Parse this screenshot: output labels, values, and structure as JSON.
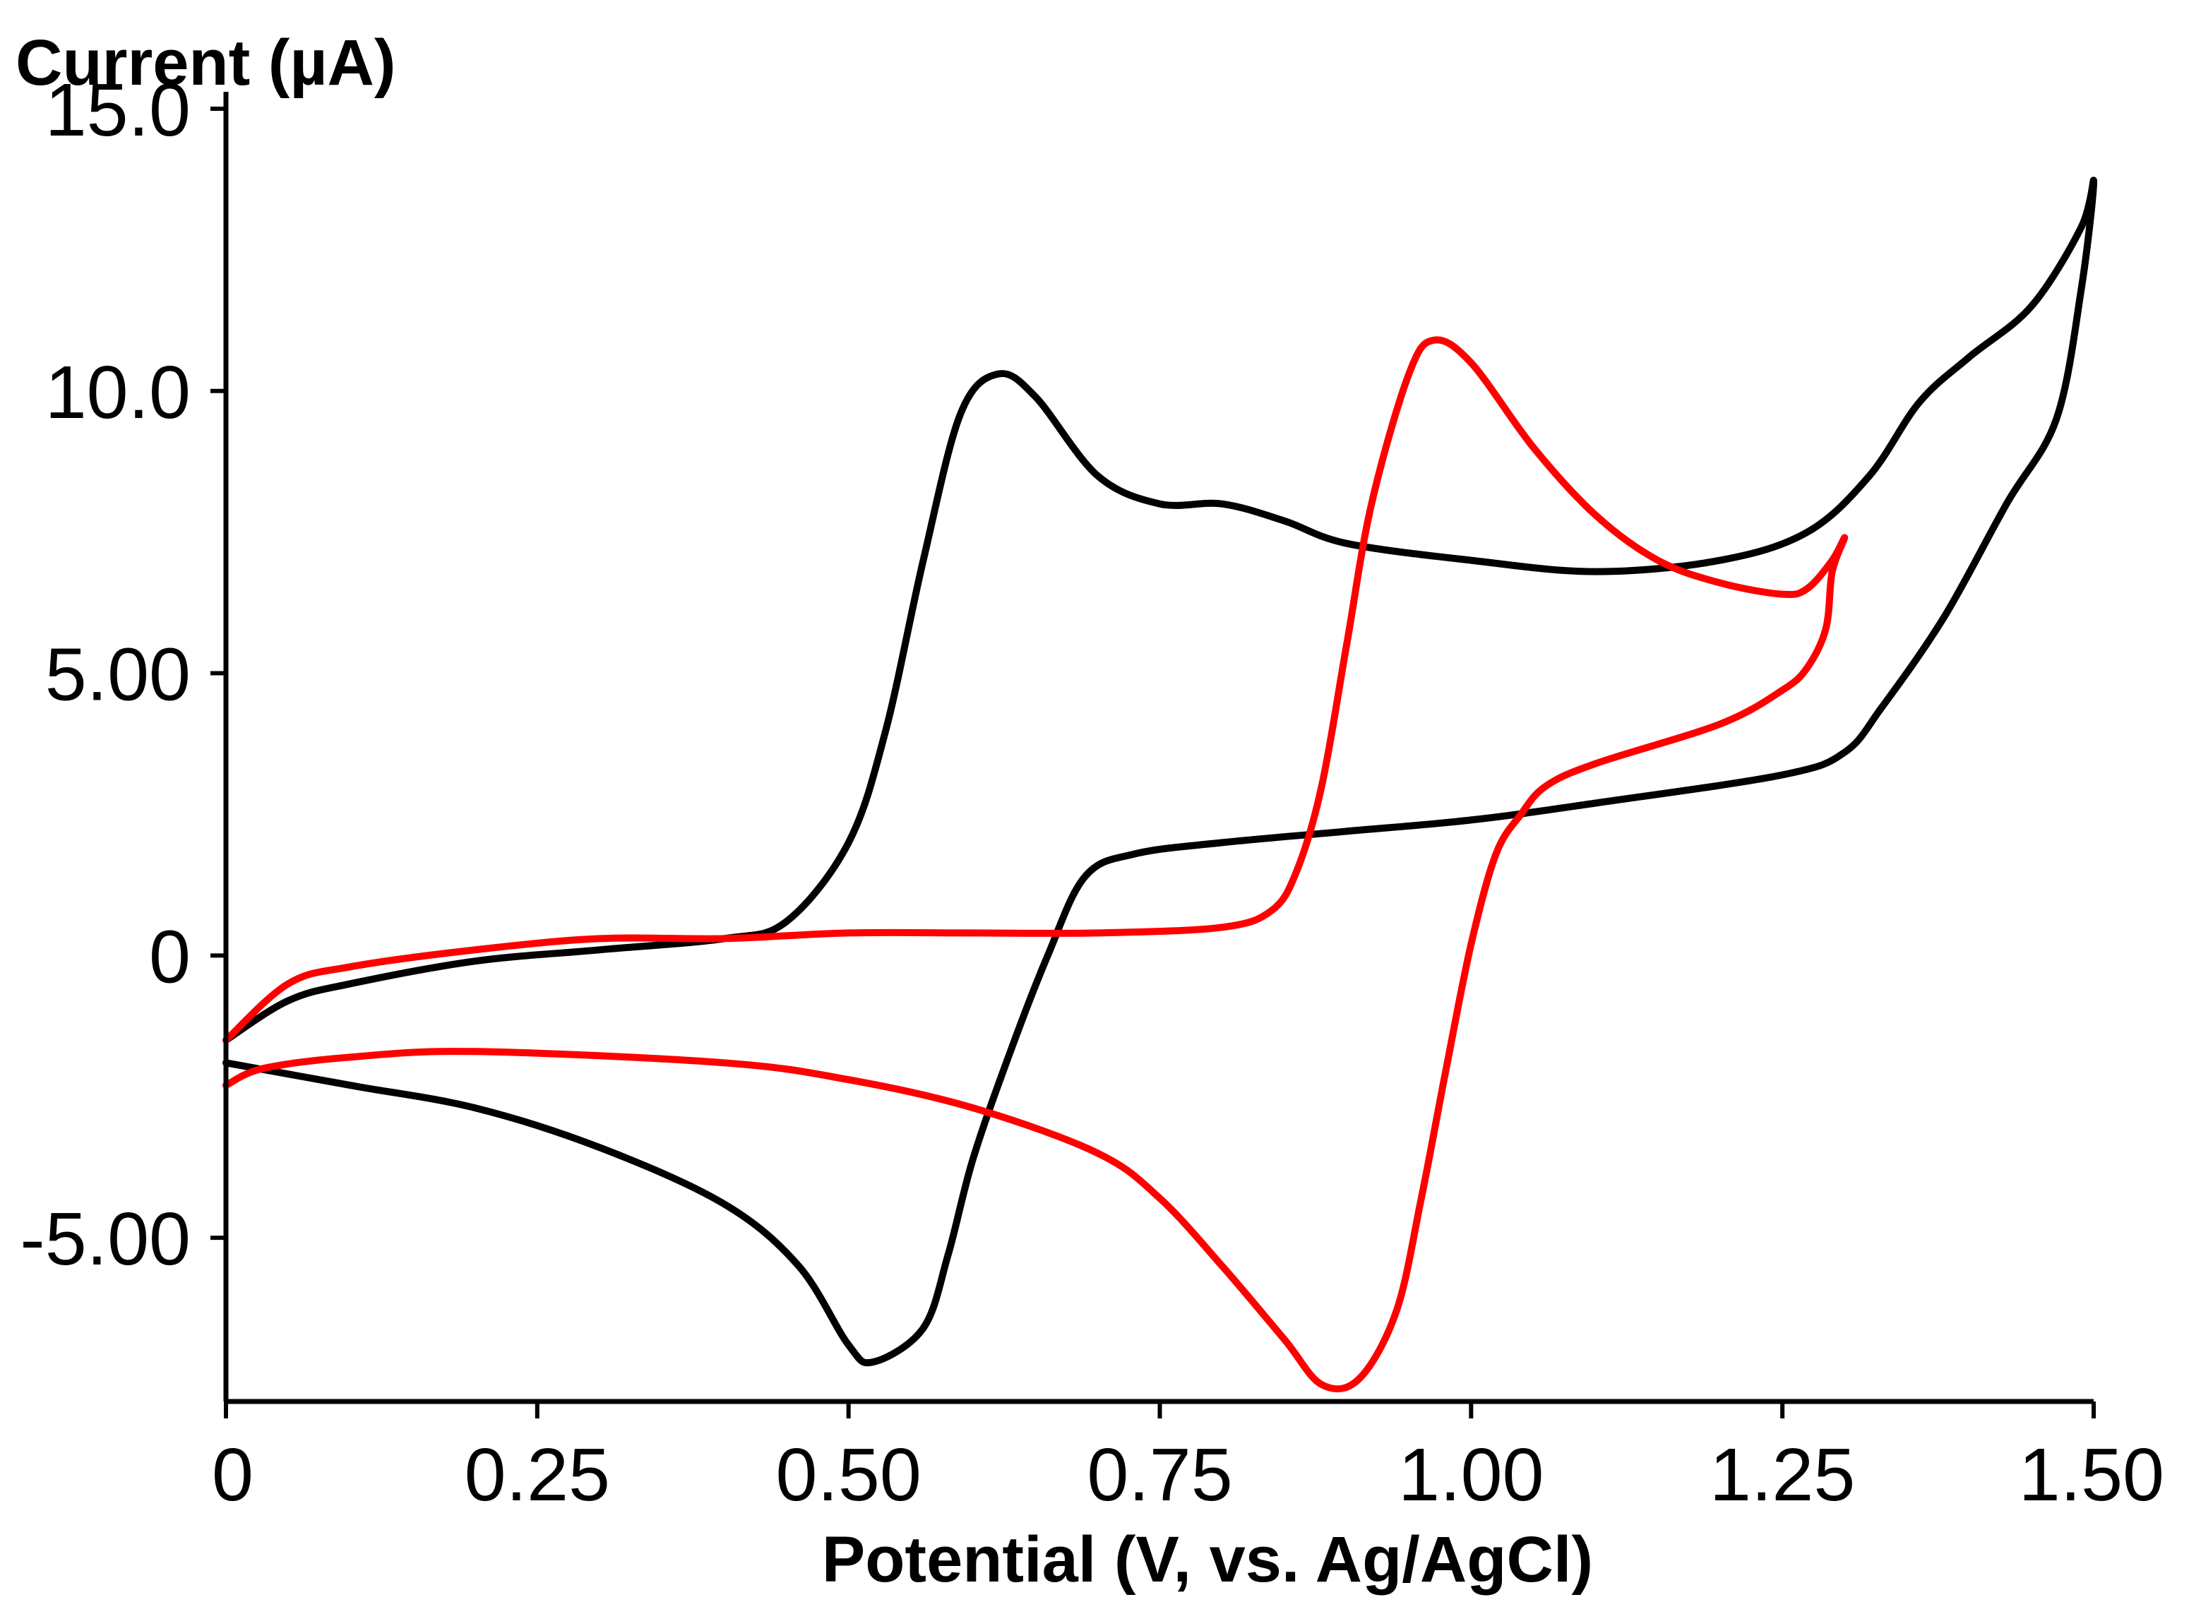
{
  "chart_data": {
    "type": "line",
    "title": "",
    "xlabel": "Potential (V, vs. Ag/AgCl)",
    "ylabel": "Current (µA)",
    "xlim": [
      0,
      1.5
    ],
    "ylim": [
      -7.9,
      15.3
    ],
    "grid": false,
    "x_ticks": [
      0,
      0.25,
      0.5,
      0.75,
      1.0,
      1.25,
      1.5
    ],
    "x_tick_labels": [
      "0",
      "0.25",
      "0.50",
      "0.75",
      "1.00",
      "1.25",
      "1.50"
    ],
    "y_ticks": [
      -5,
      0,
      5,
      10,
      15
    ],
    "y_tick_labels": [
      "-5.00",
      "0",
      "5.00",
      "10.0",
      "15.0"
    ],
    "series": [
      {
        "name": "black trace",
        "color": "#000000",
        "points": [
          [
            0.0,
            -1.5
          ],
          [
            0.05,
            -0.8
          ],
          [
            0.1,
            -0.5
          ],
          [
            0.2,
            -0.1
          ],
          [
            0.3,
            0.1
          ],
          [
            0.4,
            0.3
          ],
          [
            0.45,
            0.6
          ],
          [
            0.5,
            2.0
          ],
          [
            0.53,
            4.0
          ],
          [
            0.56,
            7.0
          ],
          [
            0.59,
            9.6
          ],
          [
            0.62,
            10.3
          ],
          [
            0.65,
            9.9
          ],
          [
            0.7,
            8.5
          ],
          [
            0.75,
            8.0
          ],
          [
            0.8,
            8.0
          ],
          [
            0.85,
            7.7
          ],
          [
            0.9,
            7.3
          ],
          [
            1.0,
            7.0
          ],
          [
            1.1,
            6.8
          ],
          [
            1.2,
            7.0
          ],
          [
            1.27,
            7.5
          ],
          [
            1.32,
            8.5
          ],
          [
            1.36,
            9.8
          ],
          [
            1.4,
            10.6
          ],
          [
            1.45,
            11.5
          ],
          [
            1.49,
            12.9
          ],
          [
            1.5,
            13.7
          ],
          [
            1.49,
            11.8
          ],
          [
            1.47,
            9.5
          ],
          [
            1.43,
            8.0
          ],
          [
            1.38,
            6.0
          ],
          [
            1.33,
            4.4
          ],
          [
            1.3,
            3.6
          ],
          [
            1.25,
            3.2
          ],
          [
            1.1,
            2.7
          ],
          [
            1.0,
            2.4
          ],
          [
            0.9,
            2.2
          ],
          [
            0.8,
            2.0
          ],
          [
            0.73,
            1.8
          ],
          [
            0.69,
            1.4
          ],
          [
            0.66,
            0.0
          ],
          [
            0.63,
            -1.7
          ],
          [
            0.6,
            -3.6
          ],
          [
            0.58,
            -5.3
          ],
          [
            0.56,
            -6.6
          ],
          [
            0.52,
            -7.2
          ],
          [
            0.5,
            -6.9
          ],
          [
            0.46,
            -5.5
          ],
          [
            0.4,
            -4.4
          ],
          [
            0.3,
            -3.4
          ],
          [
            0.2,
            -2.7
          ],
          [
            0.1,
            -2.3
          ],
          [
            0.0,
            -1.9
          ]
        ]
      },
      {
        "name": "red trace",
        "color": "#ff0000",
        "points": [
          [
            0.0,
            -1.5
          ],
          [
            0.05,
            -0.5
          ],
          [
            0.1,
            -0.2
          ],
          [
            0.2,
            0.1
          ],
          [
            0.3,
            0.3
          ],
          [
            0.4,
            0.3
          ],
          [
            0.5,
            0.4
          ],
          [
            0.6,
            0.4
          ],
          [
            0.7,
            0.4
          ],
          [
            0.8,
            0.5
          ],
          [
            0.84,
            0.8
          ],
          [
            0.86,
            1.5
          ],
          [
            0.88,
            3.0
          ],
          [
            0.9,
            5.5
          ],
          [
            0.92,
            8.0
          ],
          [
            0.95,
            10.3
          ],
          [
            0.97,
            10.9
          ],
          [
            1.0,
            10.5
          ],
          [
            1.05,
            9.0
          ],
          [
            1.1,
            7.8
          ],
          [
            1.15,
            7.0
          ],
          [
            1.2,
            6.6
          ],
          [
            1.25,
            6.4
          ],
          [
            1.27,
            6.5
          ],
          [
            1.29,
            7.0
          ],
          [
            1.3,
            7.4
          ],
          [
            1.29,
            6.8
          ],
          [
            1.285,
            5.8
          ],
          [
            1.27,
            5.1
          ],
          [
            1.25,
            4.7
          ],
          [
            1.2,
            4.1
          ],
          [
            1.1,
            3.4
          ],
          [
            1.06,
            3.0
          ],
          [
            1.04,
            2.5
          ],
          [
            1.02,
            1.8
          ],
          [
            1.0,
            0.2
          ],
          [
            0.98,
            -2.0
          ],
          [
            0.96,
            -4.3
          ],
          [
            0.94,
            -6.3
          ],
          [
            0.91,
            -7.5
          ],
          [
            0.88,
            -7.6
          ],
          [
            0.85,
            -6.8
          ],
          [
            0.8,
            -5.5
          ],
          [
            0.75,
            -4.3
          ],
          [
            0.7,
            -3.5
          ],
          [
            0.6,
            -2.7
          ],
          [
            0.5,
            -2.2
          ],
          [
            0.4,
            -1.9
          ],
          [
            0.2,
            -1.7
          ],
          [
            0.1,
            -1.8
          ],
          [
            0.03,
            -2.0
          ],
          [
            0.0,
            -2.3
          ]
        ]
      }
    ]
  }
}
